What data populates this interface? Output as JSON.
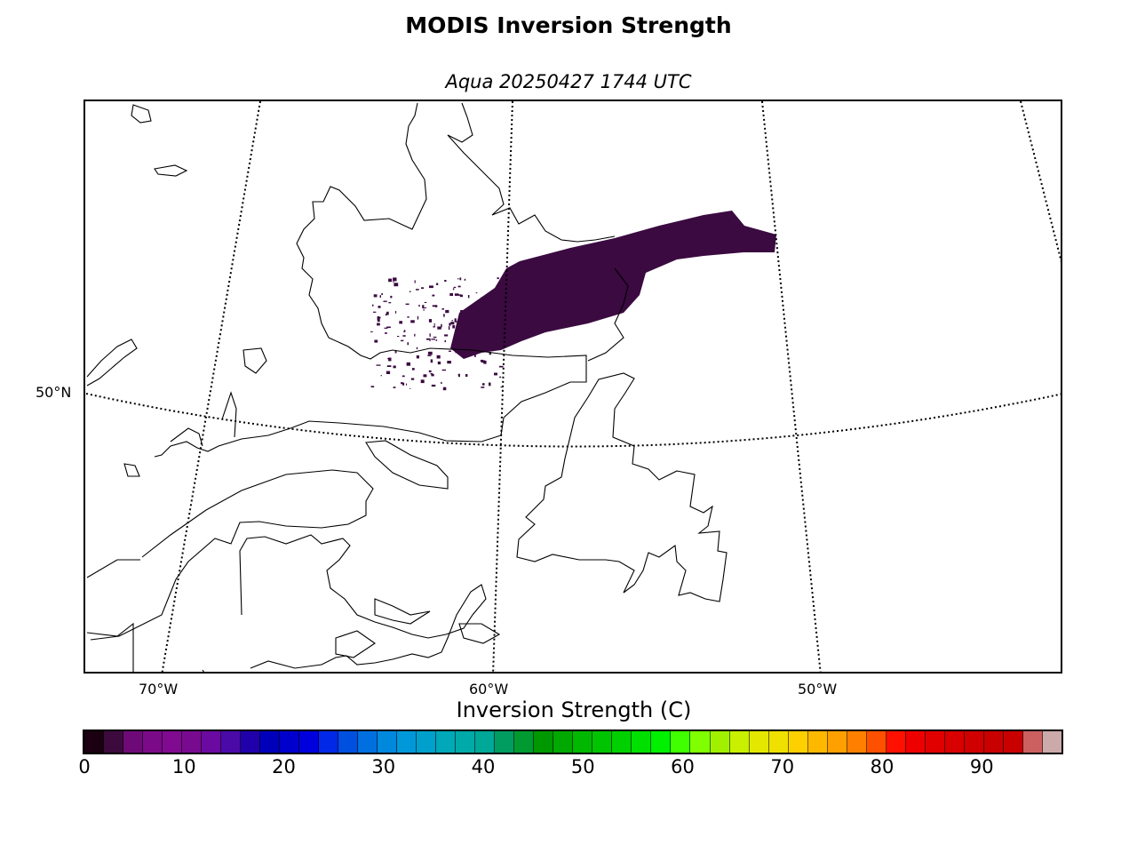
{
  "title": "MODIS Inversion Strength",
  "subtitle": "Aqua 20250427 1744 UTC",
  "map": {
    "lat_labels": [
      "50°N"
    ],
    "lon_labels": [
      "70°W",
      "60°W",
      "50°W"
    ],
    "data_color": "#3a0a40",
    "coastline_color": "#000000"
  },
  "colorbar": {
    "label": "Inversion Strength (C)",
    "ticks": [
      "0",
      "10",
      "20",
      "30",
      "40",
      "50",
      "60",
      "70",
      "80",
      "90"
    ],
    "colors": [
      "#1a0010",
      "#3d0a3d",
      "#6e0a78",
      "#7a0a88",
      "#800a90",
      "#780a90",
      "#6a0aa0",
      "#4a0aa8",
      "#2000aa",
      "#0000bb",
      "#0000cc",
      "#0000dd",
      "#0028e6",
      "#0050e0",
      "#0070e0",
      "#0088dd",
      "#0098d8",
      "#00a0cc",
      "#00a8b8",
      "#00aaa8",
      "#00a898",
      "#009c60",
      "#009a30",
      "#009800",
      "#00a800",
      "#00b800",
      "#00c400",
      "#00d000",
      "#00e000",
      "#00f000",
      "#40ff00",
      "#80ff00",
      "#a0f000",
      "#c8f000",
      "#e4e800",
      "#f0e000",
      "#ffd000",
      "#ffb800",
      "#ffa000",
      "#ff8000",
      "#ff5000",
      "#ff1000",
      "#ee0000",
      "#e00000",
      "#d80000",
      "#d00000",
      "#c80000",
      "#c80000",
      "#cc6060",
      "#ccaaaa"
    ]
  }
}
